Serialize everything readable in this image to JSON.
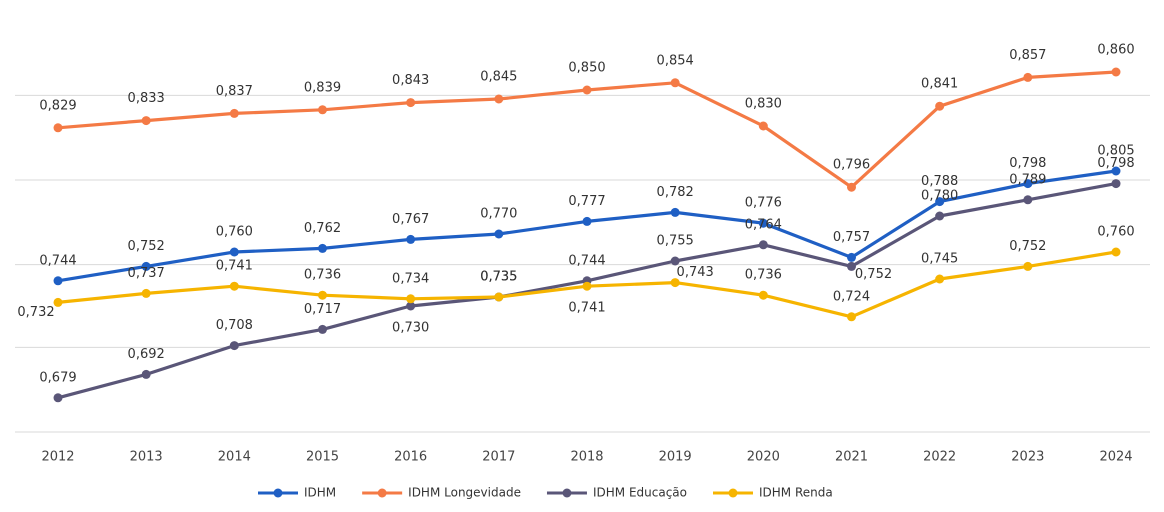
{
  "chart_data": {
    "type": "line",
    "x": [
      "2012",
      "2013",
      "2014",
      "2015",
      "2016",
      "2017",
      "2018",
      "2019",
      "2020",
      "2021",
      "2022",
      "2023",
      "2024"
    ],
    "ylim": [
      0.66,
      0.89
    ],
    "yticks": [
      0.66,
      0.707,
      0.753,
      0.8,
      0.847
    ],
    "grid": true,
    "legend": "bottom",
    "series": [
      {
        "name": "IDHM",
        "color": "#1f5fc4",
        "values": [
          0.744,
          0.752,
          0.76,
          0.762,
          0.767,
          0.77,
          0.777,
          0.782,
          0.776,
          0.757,
          0.788,
          0.798,
          0.805
        ],
        "value_labels": [
          "0,744",
          "0,752",
          "0,760",
          "0,762",
          "0,767",
          "0,770",
          "0,777",
          "0,782",
          "0,776",
          "0,757",
          "0,788",
          "0,798",
          "0,805"
        ]
      },
      {
        "name": "IDHM Longevidade",
        "color": "#f47a45",
        "values": [
          0.829,
          0.833,
          0.837,
          0.839,
          0.843,
          0.845,
          0.85,
          0.854,
          0.83,
          0.796,
          0.841,
          0.857,
          0.86
        ],
        "value_labels": [
          "0,829",
          "0,833",
          "0,837",
          "0,839",
          "0,843",
          "0,845",
          "0,850",
          "0,854",
          "0,830",
          "0,796",
          "0,841",
          "0,857",
          "0,860"
        ]
      },
      {
        "name": "IDHM Educação",
        "color": "#5a5678",
        "values": [
          0.679,
          0.692,
          0.708,
          0.717,
          0.73,
          0.735,
          0.744,
          0.755,
          0.764,
          0.752,
          0.78,
          0.789,
          0.798
        ],
        "value_labels": [
          "0,679",
          "0,692",
          "0,708",
          "0,717",
          "0,730",
          "0,735",
          "0,744",
          "0,755",
          "0,764",
          "0,752",
          "0,780",
          "0,789",
          "0,798"
        ]
      },
      {
        "name": "IDHM Renda",
        "color": "#f6b400",
        "values": [
          0.732,
          0.737,
          0.741,
          0.736,
          0.734,
          0.735,
          0.741,
          0.743,
          0.736,
          0.724,
          0.745,
          0.752,
          0.76
        ],
        "value_labels": [
          "0,732",
          "0,737",
          "0,741",
          "0,736",
          "0,734",
          "0,735",
          "0,741",
          "0,743",
          "0,736",
          "0,724",
          "0,745",
          "0,752",
          "0,760"
        ]
      }
    ]
  }
}
